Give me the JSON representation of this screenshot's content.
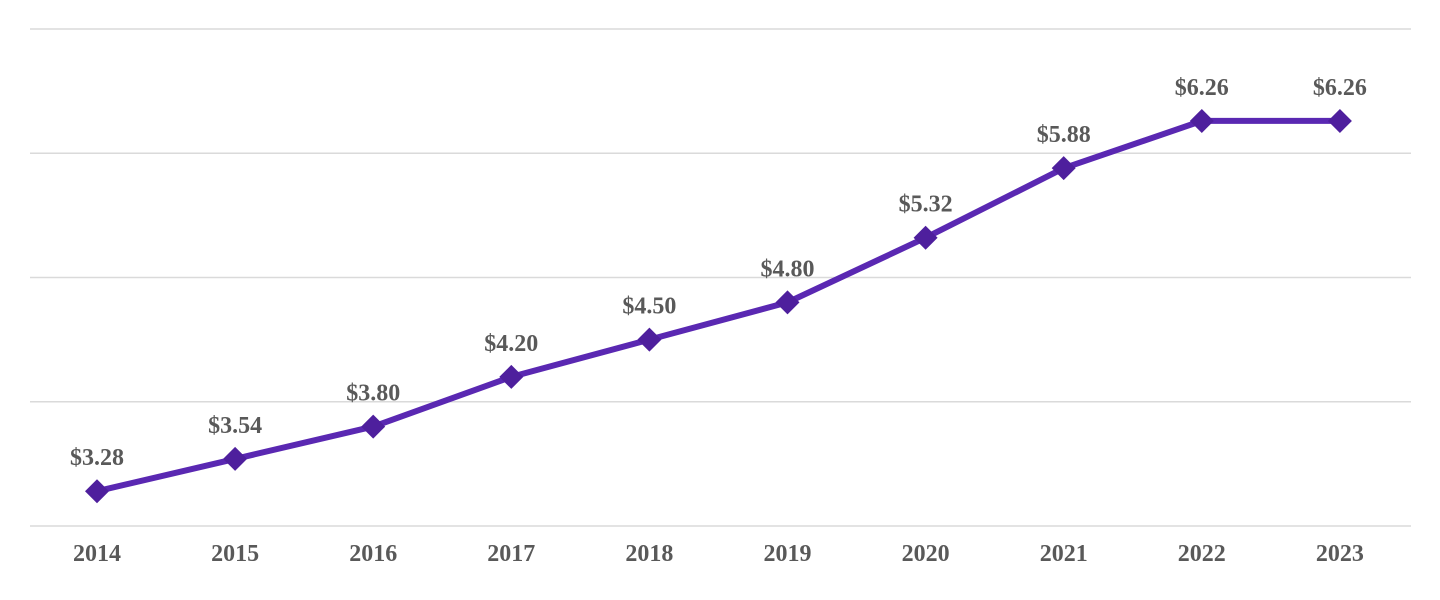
{
  "chart_data": {
    "type": "line",
    "title": "",
    "xlabel": "",
    "ylabel": "",
    "categories": [
      "2014",
      "2015",
      "2016",
      "2017",
      "2018",
      "2019",
      "2020",
      "2021",
      "2022",
      "2023"
    ],
    "values": [
      3.28,
      3.54,
      3.8,
      4.2,
      4.5,
      4.8,
      5.32,
      5.88,
      6.26,
      6.26
    ],
    "data_labels": [
      "$3.28",
      "$3.54",
      "$3.80",
      "$4.20",
      "$4.50",
      "$4.80",
      "$5.32",
      "$5.88",
      "$6.26",
      "$6.26"
    ],
    "ylim": [
      3,
      7
    ],
    "gridline_values": [
      3,
      4,
      5,
      6,
      7
    ],
    "grid": true,
    "y_axis_tick_labels_visible": false,
    "legend": "none",
    "marker": "diamond",
    "colors": {
      "line": "#5A28B2",
      "marker": "#4E1F9D",
      "label_text": "#595959",
      "axis_text": "#595959",
      "gridline": "#DADADA"
    }
  }
}
